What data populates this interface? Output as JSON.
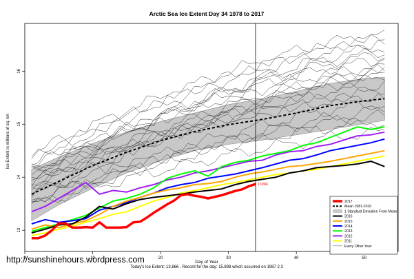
{
  "website": "http://sunshinehours.wordpress.com",
  "chart_data": {
    "type": "line",
    "title": "Arctic Sea Ice Extent Day 34 1978 to 2017",
    "xlabel": "Day of Year",
    "ylabel": "Ice Extent in millions of sq. km",
    "footnote": "Today's Ice Extent: 13.866 . Record for the day: 15.898 which occurred on 1987 2 3",
    "xlim": [
      0,
      55
    ],
    "ylim": [
      12.6,
      16.9
    ],
    "x_ticks": [
      0,
      10,
      20,
      30,
      40,
      50
    ],
    "y_ticks": [
      13,
      14,
      15,
      16
    ],
    "current_day": 34,
    "today_label": "13.866",
    "grid": false,
    "legend_position": "bottom-right",
    "legend": [
      {
        "label": "2017",
        "color": "#ff0000",
        "style": "thick"
      },
      {
        "label": "Mean 1981-2010",
        "color": "#000000",
        "style": "dashed"
      },
      {
        "label": "1 Standard Deviation From Mean",
        "color": "#bebebe",
        "style": "band"
      },
      {
        "label": "2016",
        "color": "#000000",
        "style": "line"
      },
      {
        "label": "2015",
        "color": "#ffa500",
        "style": "line"
      },
      {
        "label": "2014",
        "color": "#0000ff",
        "style": "line"
      },
      {
        "label": "2013",
        "color": "#00ff00",
        "style": "line"
      },
      {
        "label": "2012",
        "color": "#a020f0",
        "style": "line"
      },
      {
        "label": "2011",
        "color": "#ffff00",
        "style": "line"
      },
      {
        "label": "Every Other Year",
        "color": "#777777",
        "style": "thin"
      }
    ],
    "mean": {
      "x": [
        1,
        5,
        10,
        15,
        20,
        25,
        30,
        35,
        40,
        45,
        50,
        53
      ],
      "y": [
        13.68,
        13.92,
        14.22,
        14.47,
        14.69,
        14.86,
        14.99,
        15.09,
        15.21,
        15.35,
        15.44,
        15.48
      ]
    },
    "std_band": {
      "x": [
        1,
        5,
        10,
        15,
        20,
        25,
        30,
        35,
        40,
        45,
        50,
        53
      ],
      "upper": [
        14.15,
        14.38,
        14.64,
        14.85,
        15.05,
        15.21,
        15.37,
        15.48,
        15.62,
        15.77,
        15.86,
        15.88
      ],
      "lower": [
        13.18,
        13.48,
        13.79,
        14.08,
        14.31,
        14.5,
        14.62,
        14.7,
        14.8,
        14.9,
        15.01,
        15.07
      ]
    },
    "series": [
      {
        "name": "2017",
        "color": "#ff0000",
        "width": 3.5,
        "x": [
          1,
          2,
          3,
          4,
          5,
          6,
          7,
          8,
          9,
          10,
          11,
          12,
          13,
          14,
          15,
          16,
          17,
          18,
          19,
          20,
          21,
          22,
          23,
          24,
          25,
          26,
          27,
          28,
          29,
          30,
          31,
          32,
          33,
          34
        ],
        "y": [
          12.85,
          12.85,
          12.9,
          13.0,
          13.13,
          13.13,
          13.05,
          13.05,
          13.06,
          13.05,
          13.15,
          13.05,
          13.05,
          13.05,
          13.06,
          13.15,
          13.16,
          13.24,
          13.33,
          13.41,
          13.49,
          13.56,
          13.66,
          13.68,
          13.65,
          13.63,
          13.6,
          13.63,
          13.66,
          13.7,
          13.74,
          13.77,
          13.83,
          13.87
        ]
      },
      {
        "name": "2016",
        "color": "#000000",
        "width": 2,
        "x": [
          1,
          3,
          5,
          7,
          9,
          11,
          13,
          15,
          17,
          19,
          21,
          23,
          25,
          27,
          29,
          31,
          33,
          35,
          37,
          39,
          41,
          43,
          45,
          47,
          49,
          51,
          53
        ],
        "y": [
          12.95,
          13.02,
          13.1,
          13.12,
          13.25,
          13.45,
          13.4,
          13.5,
          13.58,
          13.62,
          13.65,
          13.68,
          13.72,
          13.75,
          13.78,
          13.86,
          13.92,
          13.96,
          14.0,
          14.08,
          14.12,
          14.18,
          14.2,
          14.22,
          14.25,
          14.3,
          14.2
        ]
      },
      {
        "name": "2015",
        "color": "#ffa500",
        "width": 2,
        "x": [
          1,
          3,
          5,
          7,
          9,
          11,
          13,
          15,
          17,
          19,
          21,
          23,
          25,
          27,
          29,
          31,
          33,
          35,
          37,
          39,
          41,
          43,
          45,
          47,
          49,
          51,
          53
        ],
        "y": [
          13.02,
          13.1,
          13.05,
          13.12,
          13.18,
          13.3,
          13.45,
          13.55,
          13.62,
          13.7,
          13.76,
          13.8,
          13.86,
          13.88,
          13.92,
          14.0,
          14.06,
          14.1,
          14.15,
          14.2,
          14.22,
          14.26,
          14.3,
          14.35,
          14.4,
          14.45,
          14.5
        ]
      },
      {
        "name": "2014",
        "color": "#0000ff",
        "width": 2,
        "x": [
          1,
          3,
          5,
          7,
          9,
          11,
          13,
          15,
          17,
          19,
          21,
          23,
          25,
          27,
          29,
          31,
          33,
          35,
          37,
          39,
          41,
          43,
          45,
          47,
          49,
          51,
          53
        ],
        "y": [
          13.12,
          13.2,
          13.15,
          13.18,
          13.22,
          13.38,
          13.45,
          13.52,
          13.62,
          13.7,
          13.8,
          13.86,
          13.9,
          13.98,
          14.02,
          14.06,
          14.12,
          14.18,
          14.25,
          14.32,
          14.35,
          14.42,
          14.5,
          14.55,
          14.6,
          14.65,
          14.72
        ]
      },
      {
        "name": "2013",
        "color": "#00ff00",
        "width": 2,
        "x": [
          1,
          3,
          5,
          7,
          9,
          11,
          13,
          15,
          17,
          19,
          21,
          23,
          25,
          27,
          29,
          31,
          33,
          35,
          37,
          39,
          41,
          43,
          45,
          47,
          49,
          51,
          53
        ],
        "y": [
          12.98,
          13.05,
          13.12,
          13.2,
          13.28,
          13.42,
          13.55,
          13.6,
          13.68,
          13.8,
          13.98,
          14.06,
          14.12,
          14.02,
          14.2,
          14.28,
          14.32,
          14.4,
          14.45,
          14.5,
          14.6,
          14.65,
          14.75,
          14.85,
          14.95,
          14.9,
          14.95
        ]
      },
      {
        "name": "2012",
        "color": "#a020f0",
        "width": 2,
        "x": [
          1,
          3,
          5,
          7,
          9,
          11,
          13,
          15,
          17,
          19,
          21,
          23,
          25,
          27,
          29,
          31,
          33,
          35,
          37,
          39,
          41,
          43,
          45,
          47,
          49,
          51,
          53
        ],
        "y": [
          13.35,
          13.45,
          13.6,
          13.75,
          13.9,
          13.68,
          13.75,
          13.72,
          13.8,
          13.86,
          13.95,
          14.0,
          14.08,
          14.12,
          14.18,
          14.24,
          14.3,
          14.32,
          14.42,
          14.48,
          14.5,
          14.58,
          14.62,
          14.7,
          14.78,
          14.8,
          14.85
        ]
      },
      {
        "name": "2011",
        "color": "#ffff00",
        "width": 2,
        "x": [
          1,
          3,
          5,
          7,
          9,
          11,
          13,
          15,
          17,
          19,
          21,
          23,
          25,
          27,
          29,
          31,
          33,
          35,
          37,
          39,
          41,
          43,
          45,
          47,
          49,
          51,
          53
        ],
        "y": [
          12.9,
          12.95,
          13.02,
          13.08,
          13.15,
          13.22,
          13.3,
          13.35,
          13.45,
          13.55,
          13.62,
          13.7,
          13.75,
          13.8,
          13.86,
          13.9,
          13.95,
          14.0,
          14.05,
          14.08,
          14.12,
          14.15,
          14.2,
          14.25,
          14.3,
          14.35,
          14.4
        ]
      }
    ],
    "other_years": [
      {
        "start": 13.75,
        "end": 15.85
      },
      {
        "start": 14.15,
        "end": 16.2
      },
      {
        "start": 14.32,
        "end": 16.55
      },
      {
        "start": 13.9,
        "end": 16.0
      },
      {
        "start": 14.0,
        "end": 15.6
      },
      {
        "start": 13.55,
        "end": 15.4
      },
      {
        "start": 14.45,
        "end": 16.7
      },
      {
        "start": 13.62,
        "end": 15.95
      },
      {
        "start": 14.08,
        "end": 16.3
      },
      {
        "start": 13.82,
        "end": 15.75
      },
      {
        "start": 14.22,
        "end": 16.1
      },
      {
        "start": 13.45,
        "end": 15.25
      },
      {
        "start": 13.95,
        "end": 16.45
      },
      {
        "start": 14.05,
        "end": 15.55
      },
      {
        "start": 13.7,
        "end": 15.15
      },
      {
        "start": 14.35,
        "end": 16.62
      },
      {
        "start": 13.58,
        "end": 15.05
      },
      {
        "start": 13.85,
        "end": 15.98
      },
      {
        "start": 13.48,
        "end": 14.85
      },
      {
        "start": 14.12,
        "end": 16.35
      }
    ]
  }
}
